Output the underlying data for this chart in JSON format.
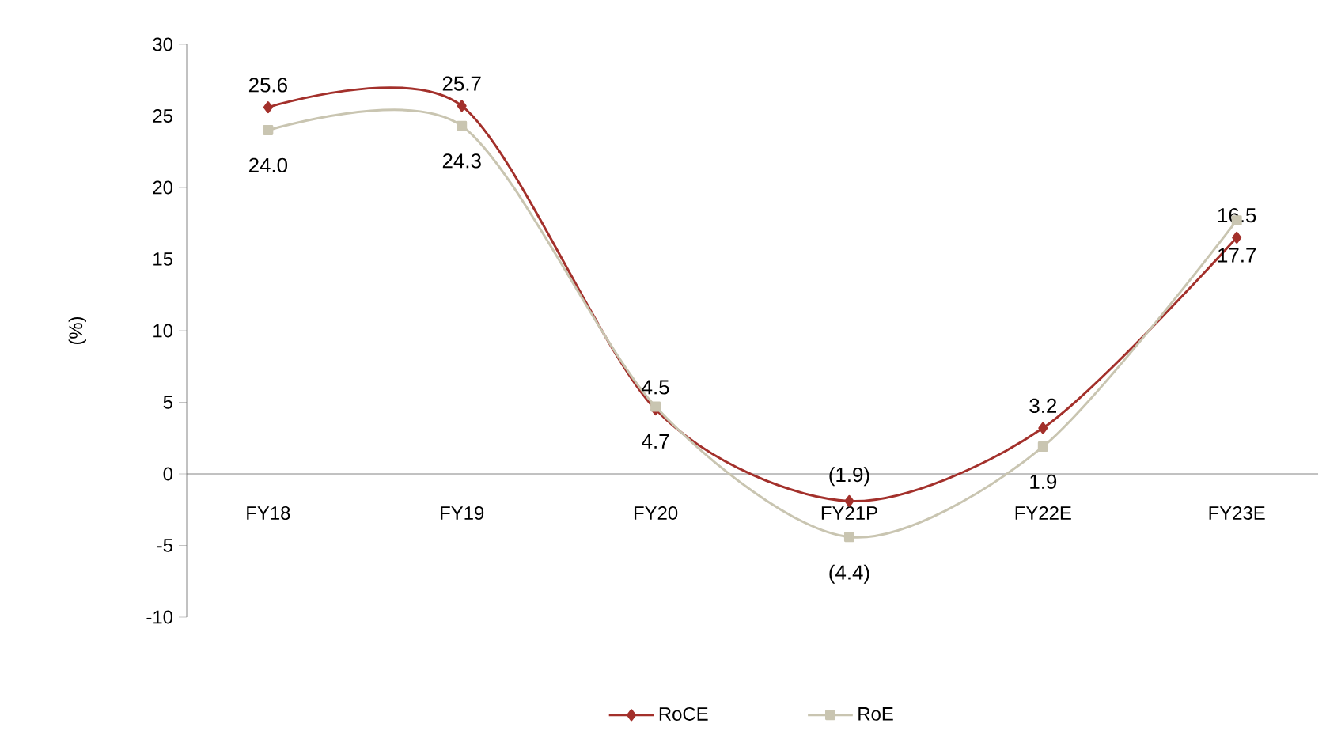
{
  "chart_data": {
    "type": "line",
    "ylabel": "(%)",
    "categories": [
      "FY18",
      "FY19",
      "FY20",
      "FY21P",
      "FY22E",
      "FY23E"
    ],
    "series": [
      {
        "name": "RoCE",
        "color": "#a3302b",
        "marker": "diamond",
        "values": [
          25.6,
          25.7,
          4.5,
          -1.9,
          3.2,
          16.5
        ],
        "value_labels": [
          "25.6",
          "25.7",
          "4.5",
          "(1.9)",
          "3.2",
          "16.5"
        ]
      },
      {
        "name": "RoE",
        "color": "#c9c5b1",
        "marker": "square",
        "values": [
          24.0,
          24.3,
          4.7,
          -4.4,
          1.9,
          17.7
        ],
        "value_labels": [
          "24.0",
          "24.3",
          "4.7",
          "(4.4)",
          "1.9",
          "17.7"
        ]
      }
    ],
    "ylim": [
      -10,
      30
    ],
    "yticks": [
      -10,
      -5,
      0,
      5,
      10,
      15,
      20,
      25,
      30
    ],
    "grid": false,
    "legend": "bottom"
  }
}
